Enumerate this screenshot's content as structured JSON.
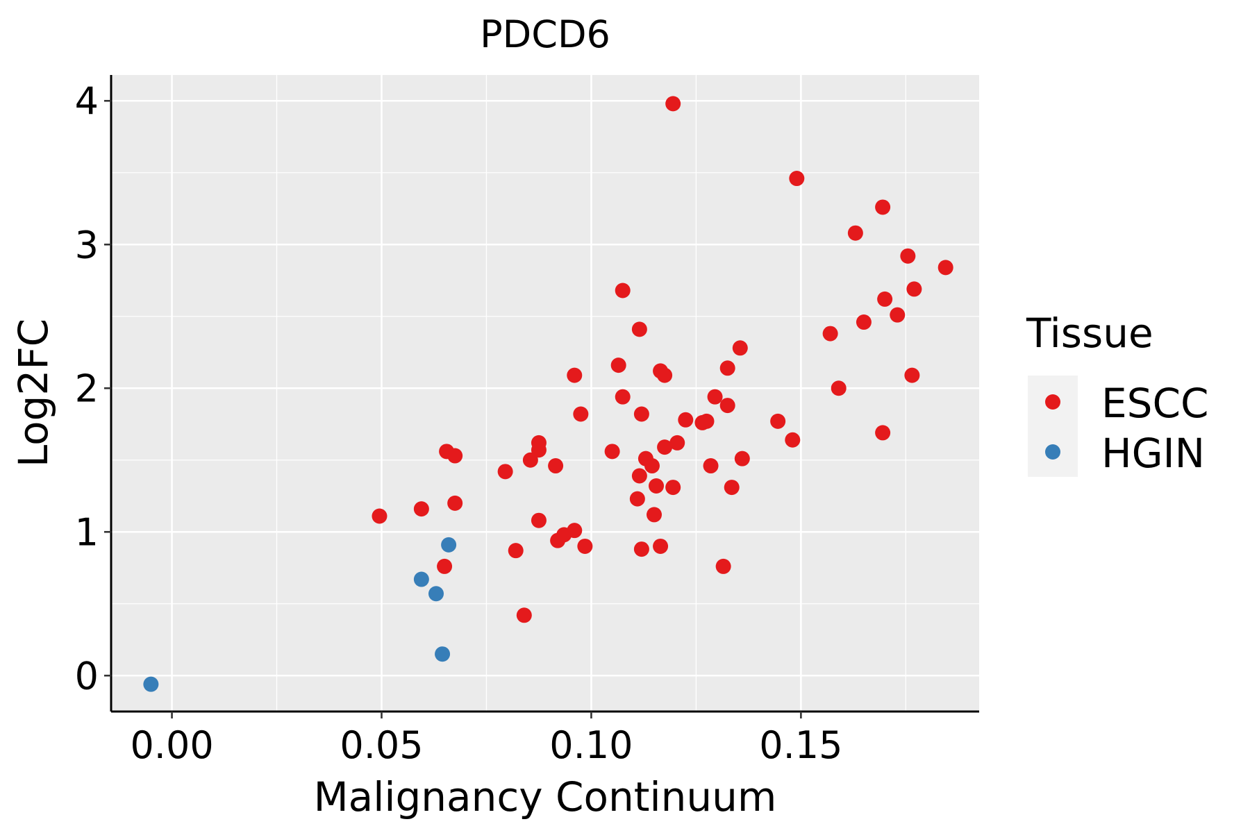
{
  "chart_data": {
    "type": "scatter",
    "title": "PDCD6",
    "xlabel": "Malignancy Continuum",
    "ylabel": "Log2FC",
    "xlim": [
      -0.0145,
      0.1925
    ],
    "ylim": [
      -0.25,
      4.18
    ],
    "x_ticks": [
      0.0,
      0.05,
      0.1,
      0.15
    ],
    "x_tick_labels": [
      "0.00",
      "0.05",
      "0.10",
      "0.15"
    ],
    "y_ticks": [
      0,
      1,
      2,
      3,
      4
    ],
    "y_tick_labels": [
      "0",
      "1",
      "2",
      "3",
      "4"
    ],
    "grid": true,
    "legend": {
      "title": "Tissue",
      "position": "right",
      "entries": [
        {
          "label": "ESCC",
          "color": "#E41A1C"
        },
        {
          "label": "HGIN",
          "color": "#377EB8"
        }
      ]
    },
    "series": [
      {
        "name": "ESCC",
        "color": "#E41A1C",
        "points": [
          [
            0.1195,
            3.98
          ],
          [
            0.149,
            3.46
          ],
          [
            0.1695,
            3.26
          ],
          [
            0.163,
            3.08
          ],
          [
            0.1755,
            2.92
          ],
          [
            0.1845,
            2.84
          ],
          [
            0.1075,
            2.68
          ],
          [
            0.177,
            2.69
          ],
          [
            0.17,
            2.62
          ],
          [
            0.173,
            2.51
          ],
          [
            0.165,
            2.46
          ],
          [
            0.1115,
            2.41
          ],
          [
            0.157,
            2.38
          ],
          [
            0.1355,
            2.28
          ],
          [
            0.1065,
            2.16
          ],
          [
            0.1325,
            2.14
          ],
          [
            0.1165,
            2.12
          ],
          [
            0.1175,
            2.09
          ],
          [
            0.096,
            2.09
          ],
          [
            0.1765,
            2.09
          ],
          [
            0.159,
            2.0
          ],
          [
            0.1075,
            1.94
          ],
          [
            0.1295,
            1.94
          ],
          [
            0.1325,
            1.88
          ],
          [
            0.112,
            1.82
          ],
          [
            0.0975,
            1.82
          ],
          [
            0.1225,
            1.78
          ],
          [
            0.1275,
            1.77
          ],
          [
            0.1265,
            1.76
          ],
          [
            0.1445,
            1.77
          ],
          [
            0.1695,
            1.69
          ],
          [
            0.148,
            1.64
          ],
          [
            0.0875,
            1.62
          ],
          [
            0.1205,
            1.62
          ],
          [
            0.1175,
            1.59
          ],
          [
            0.0875,
            1.57
          ],
          [
            0.0655,
            1.56
          ],
          [
            0.105,
            1.56
          ],
          [
            0.0675,
            1.53
          ],
          [
            0.113,
            1.51
          ],
          [
            0.136,
            1.51
          ],
          [
            0.0855,
            1.5
          ],
          [
            0.0915,
            1.46
          ],
          [
            0.1145,
            1.46
          ],
          [
            0.1285,
            1.46
          ],
          [
            0.0795,
            1.42
          ],
          [
            0.1115,
            1.39
          ],
          [
            0.1155,
            1.32
          ],
          [
            0.1195,
            1.31
          ],
          [
            0.1335,
            1.31
          ],
          [
            0.111,
            1.23
          ],
          [
            0.0675,
            1.2
          ],
          [
            0.0595,
            1.16
          ],
          [
            0.0495,
            1.11
          ],
          [
            0.115,
            1.12
          ],
          [
            0.0875,
            1.08
          ],
          [
            0.096,
            1.01
          ],
          [
            0.0935,
            0.98
          ],
          [
            0.092,
            0.94
          ],
          [
            0.0985,
            0.9
          ],
          [
            0.1165,
            0.9
          ],
          [
            0.112,
            0.88
          ],
          [
            0.082,
            0.87
          ],
          [
            0.065,
            0.76
          ],
          [
            0.1315,
            0.76
          ],
          [
            0.084,
            0.42
          ]
        ]
      },
      {
        "name": "HGIN",
        "color": "#377EB8",
        "points": [
          [
            -0.005,
            -0.06
          ],
          [
            0.066,
            0.91
          ],
          [
            0.0595,
            0.67
          ],
          [
            0.063,
            0.57
          ],
          [
            0.0645,
            0.15
          ]
        ]
      }
    ]
  }
}
